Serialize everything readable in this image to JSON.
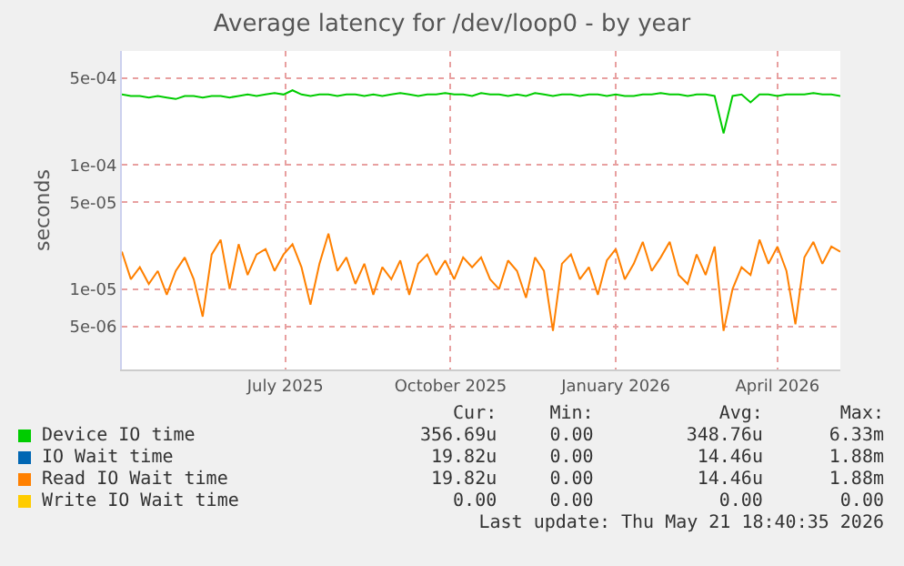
{
  "chart_data": {
    "type": "line",
    "title": "Average latency for /dev/loop0 - by year",
    "ylabel": "seconds",
    "x": [
      "2025-04-16",
      "2025-04-21",
      "2025-04-26",
      "2025-05-01",
      "2025-05-06",
      "2025-05-11",
      "2025-05-16",
      "2025-05-21",
      "2025-05-26",
      "2025-05-31",
      "2025-06-05",
      "2025-06-10",
      "2025-06-15",
      "2025-06-20",
      "2025-06-25",
      "2025-06-30",
      "2025-07-05",
      "2025-07-10",
      "2025-07-15",
      "2025-07-20",
      "2025-07-25",
      "2025-07-30",
      "2025-08-04",
      "2025-08-09",
      "2025-08-14",
      "2025-08-19",
      "2025-08-24",
      "2025-08-29",
      "2025-09-03",
      "2025-09-08",
      "2025-09-13",
      "2025-09-18",
      "2025-09-23",
      "2025-09-28",
      "2025-10-03",
      "2025-10-08",
      "2025-10-13",
      "2025-10-18",
      "2025-10-23",
      "2025-10-28",
      "2025-11-02",
      "2025-11-07",
      "2025-11-12",
      "2025-11-17",
      "2025-11-22",
      "2025-11-27",
      "2025-12-02",
      "2025-12-07",
      "2025-12-12",
      "2025-12-17",
      "2025-12-22",
      "2025-12-27",
      "2026-01-01",
      "2026-01-06",
      "2026-01-11",
      "2026-01-16",
      "2026-01-21",
      "2026-01-26",
      "2026-01-31",
      "2026-02-05",
      "2026-02-10",
      "2026-02-15",
      "2026-02-20",
      "2026-02-25",
      "2026-03-02",
      "2026-03-07",
      "2026-03-12",
      "2026-03-17",
      "2026-03-22",
      "2026-03-27",
      "2026-04-01",
      "2026-04-06",
      "2026-04-11",
      "2026-04-16",
      "2026-04-21",
      "2026-04-26",
      "2026-05-01",
      "2026-05-06",
      "2026-05-11",
      "2026-05-16",
      "2026-05-21"
    ],
    "series": [
      {
        "name": "Device IO time",
        "color": "#00cc00",
        "values": [
          0.00037,
          0.00036,
          0.00036,
          0.00035,
          0.00036,
          0.00035,
          0.00034,
          0.00036,
          0.00036,
          0.00035,
          0.00036,
          0.00036,
          0.00035,
          0.00036,
          0.00037,
          0.00036,
          0.00037,
          0.00038,
          0.00037,
          0.0004,
          0.00037,
          0.00036,
          0.00037,
          0.00037,
          0.00036,
          0.00037,
          0.00037,
          0.00036,
          0.00037,
          0.00036,
          0.00037,
          0.00038,
          0.00037,
          0.00036,
          0.00037,
          0.00037,
          0.00038,
          0.00037,
          0.00037,
          0.00036,
          0.00038,
          0.00037,
          0.00037,
          0.00036,
          0.00037,
          0.00036,
          0.00038,
          0.00037,
          0.00036,
          0.00037,
          0.00037,
          0.00036,
          0.00037,
          0.00037,
          0.00036,
          0.00037,
          0.00036,
          0.00036,
          0.00037,
          0.00037,
          0.00038,
          0.00037,
          0.00037,
          0.00036,
          0.00037,
          0.00037,
          0.00036,
          0.00018,
          0.00036,
          0.00037,
          0.00032,
          0.00037,
          0.00037,
          0.00036,
          0.00037,
          0.00037,
          0.00037,
          0.00038,
          0.00037,
          0.00037,
          0.00036
        ]
      },
      {
        "name": "IO Wait time",
        "color": "#0066b3",
        "values": [
          null,
          null,
          null,
          null,
          null,
          null,
          null,
          null,
          null,
          null,
          null,
          null,
          null,
          null,
          null,
          null,
          null,
          null,
          null,
          null,
          null,
          null,
          null,
          null,
          null,
          null,
          null,
          null,
          null,
          null,
          null,
          null,
          null,
          null,
          null,
          null,
          null,
          null,
          null,
          null,
          null,
          null,
          null,
          null,
          null,
          null,
          null,
          null,
          null,
          null,
          null,
          null,
          null,
          null,
          null,
          null,
          null,
          null,
          null,
          null,
          null,
          null,
          null,
          null,
          null,
          null,
          null,
          null,
          null,
          null,
          null,
          null,
          null,
          null,
          null,
          null,
          null,
          null,
          null,
          null,
          null
        ]
      },
      {
        "name": "Read IO Wait time",
        "color": "#ff8000",
        "values": [
          2e-05,
          1.2e-05,
          1.5e-05,
          1.1e-05,
          1.4e-05,
          9e-06,
          1.4e-05,
          1.8e-05,
          1.2e-05,
          6e-06,
          1.9e-05,
          2.5e-05,
          1e-05,
          2.3e-05,
          1.3e-05,
          1.9e-05,
          2.1e-05,
          1.4e-05,
          1.9e-05,
          2.3e-05,
          1.5e-05,
          7.5e-06,
          1.6e-05,
          2.8e-05,
          1.4e-05,
          1.8e-05,
          1.1e-05,
          1.6e-05,
          9e-06,
          1.5e-05,
          1.2e-05,
          1.7e-05,
          9e-06,
          1.6e-05,
          1.9e-05,
          1.3e-05,
          1.7e-05,
          1.2e-05,
          1.8e-05,
          1.5e-05,
          1.8e-05,
          1.2e-05,
          1e-05,
          1.7e-05,
          1.4e-05,
          8.5e-06,
          1.8e-05,
          1.4e-05,
          4.6e-06,
          1.6e-05,
          1.9e-05,
          1.2e-05,
          1.5e-05,
          9e-06,
          1.7e-05,
          2.1e-05,
          1.2e-05,
          1.6e-05,
          2.4e-05,
          1.4e-05,
          1.8e-05,
          2.4e-05,
          1.3e-05,
          1.1e-05,
          1.9e-05,
          1.3e-05,
          2.2e-05,
          4.6e-06,
          1e-05,
          1.5e-05,
          1.3e-05,
          2.5e-05,
          1.6e-05,
          2.2e-05,
          1.4e-05,
          5.2e-06,
          1.8e-05,
          2.4e-05,
          1.6e-05,
          2.2e-05,
          2e-05
        ]
      },
      {
        "name": "Write IO Wait time",
        "color": "#ffcc00",
        "values": [
          null,
          null,
          null,
          null,
          null,
          null,
          null,
          null,
          null,
          null,
          null,
          null,
          null,
          null,
          null,
          null,
          null,
          null,
          null,
          null,
          null,
          null,
          null,
          null,
          null,
          null,
          null,
          null,
          null,
          null,
          null,
          null,
          null,
          null,
          null,
          null,
          null,
          null,
          null,
          null,
          null,
          null,
          null,
          null,
          null,
          null,
          null,
          null,
          null,
          null,
          null,
          null,
          null,
          null,
          null,
          null,
          null,
          null,
          null,
          null,
          null,
          null,
          null,
          null,
          null,
          null,
          null,
          null,
          null,
          null,
          null,
          null,
          null,
          null,
          null,
          null,
          null,
          null,
          null,
          null,
          null
        ]
      }
    ],
    "log": true,
    "ylim": [
      2.25e-06,
      0.00083
    ],
    "yticks": [
      {
        "value": 5e-06,
        "label": "5e-06"
      },
      {
        "value": 1e-05,
        "label": "1e-05"
      },
      {
        "value": 5e-05,
        "label": "5e-05"
      },
      {
        "value": 0.0001,
        "label": "1e-04"
      },
      {
        "value": 0.0005,
        "label": "5e-04"
      }
    ],
    "xlim": [
      "2025-04-16",
      "2026-05-21"
    ],
    "xticks": [
      {
        "value": "2025-07-16",
        "label": "July 2025"
      },
      {
        "value": "2025-10-16",
        "label": "October 2025"
      },
      {
        "value": "2026-01-16",
        "label": "January 2026"
      },
      {
        "value": "2026-04-16",
        "label": "April 2026"
      }
    ],
    "grid": true,
    "legend": "bottom",
    "annotations": [
      "Cur:",
      "Min:",
      "Avg:",
      "Max:",
      "356.69u",
      "0.00",
      "348.76u",
      "6.33m",
      "19.82u",
      "0.00",
      "14.46u",
      "1.88m",
      "19.82u",
      "0.00",
      "14.46u",
      "1.88m",
      "0.00",
      "0.00",
      "0.00",
      "0.00",
      "Last update: Thu May 21 18:40:35 2026"
    ]
  }
}
